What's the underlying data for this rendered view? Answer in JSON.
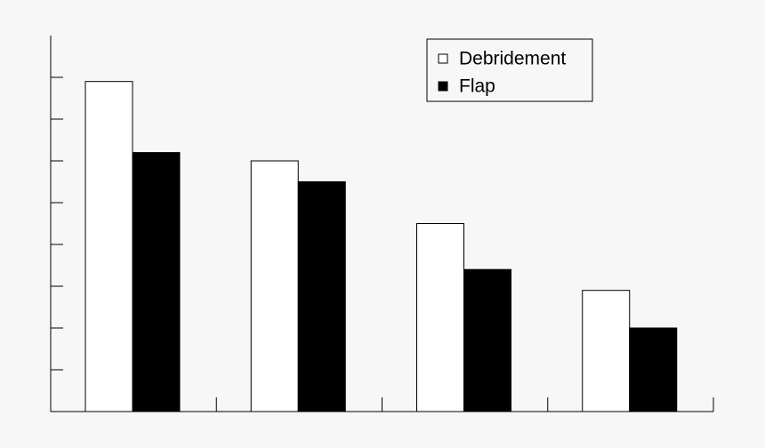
{
  "chart_data": {
    "type": "bar",
    "categories": [
      null,
      null,
      null,
      null
    ],
    "series": [
      {
        "name": "Debridement",
        "color": "#ffffff",
        "values": [
          7.9,
          6.0,
          4.5,
          2.9
        ]
      },
      {
        "name": "Flap",
        "color": "#000000",
        "values": [
          6.2,
          5.5,
          3.4,
          2.0
        ]
      }
    ],
    "ylim": [
      0,
      9
    ],
    "yticks": [
      0,
      1,
      2,
      3,
      4,
      5,
      6,
      7,
      8
    ],
    "grid": false,
    "legend": "top-right"
  }
}
